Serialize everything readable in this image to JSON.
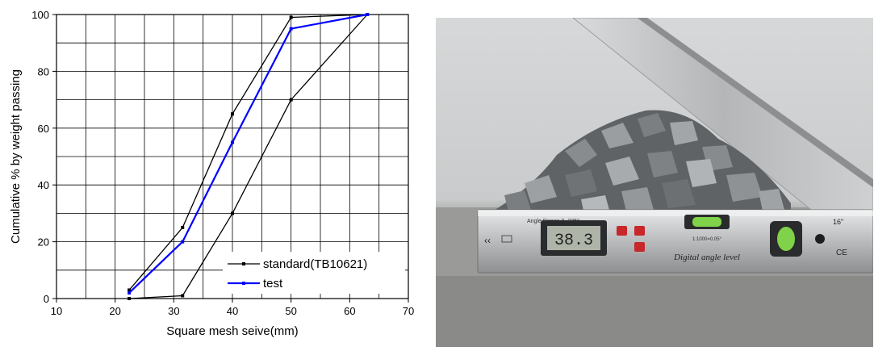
{
  "chart_data": {
    "type": "line",
    "xlabel": "Square mesh seive(mm)",
    "ylabel": "Cumulative % by weight passing",
    "xlim": [
      10,
      70
    ],
    "ylim": [
      0,
      100
    ],
    "xticks": [
      10,
      20,
      30,
      40,
      50,
      60,
      70
    ],
    "yticks": [
      0,
      20,
      40,
      60,
      80,
      100
    ],
    "grid": true,
    "minor_grid_x": 5,
    "minor_grid_y": 10,
    "legend_position": "bottom-right",
    "series": [
      {
        "name": "standard(TB10621)",
        "color": "#000000",
        "style": "upper-bound",
        "x": [
          22.4,
          31.5,
          40,
          50,
          63
        ],
        "y": [
          3,
          25,
          65,
          99,
          100
        ]
      },
      {
        "name": "",
        "color": "#000000",
        "style": "lower-bound",
        "x": [
          22.4,
          31.5,
          40,
          50,
          63
        ],
        "y": [
          0,
          1,
          30,
          70,
          100
        ]
      },
      {
        "name": "test",
        "color": "#0000ff",
        "style": "measured",
        "x": [
          22.4,
          31.5,
          40,
          50,
          63
        ],
        "y": [
          2,
          20,
          55,
          95,
          100
        ]
      }
    ]
  },
  "photo": {
    "display_reading": "38.3",
    "brand_text": "Digital angle level",
    "range_text": "Angle Range 0~225°",
    "size_text": "16\"",
    "ce_mark": "CE",
    "accuracy_text": "1:1000=0.05°"
  }
}
